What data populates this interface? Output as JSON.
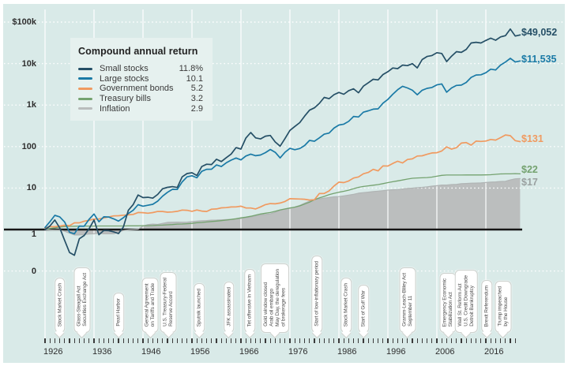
{
  "page": {
    "background": "#ffffff",
    "chart_bg": "#d9eae8",
    "grid_color": "#ffffff",
    "baseline_color": "#161616",
    "axis_text_color": "#2e2e2e",
    "legend_bg": "#e6f1ef",
    "flag_border": "#cdd1cd",
    "flag_text_color": "#4e4e4e",
    "inflation_fill": "#b9bcbc"
  },
  "chart_data": {
    "type": "line",
    "scale": "log",
    "legend_title": "Compound annual return",
    "start_year": 1926,
    "end_year": 2023,
    "y_axis": [
      {
        "label": "$100k",
        "value": 100000
      },
      {
        "label": "10k",
        "value": 10000
      },
      {
        "label": "1k",
        "value": 1000
      },
      {
        "label": "100",
        "value": 100
      },
      {
        "label": "10",
        "value": 10
      },
      {
        "label": "1",
        "value": 1
      },
      {
        "label": "0",
        "value": 0
      }
    ],
    "x_tick_labels": [
      "1926",
      "1936",
      "1946",
      "1956",
      "1966",
      "1976",
      "1986",
      "1996",
      "2006",
      "2016"
    ],
    "series": [
      {
        "name": "Small stocks",
        "return_display": "11.8%",
        "end_label": "$49,052",
        "color": "#254f66",
        "values": [
          1,
          1.22,
          1.7,
          1.1,
          0.55,
          0.28,
          0.24,
          0.6,
          0.72,
          1.05,
          1.7,
          0.75,
          0.95,
          0.94,
          0.88,
          0.8,
          1.15,
          2.9,
          4,
          6.8,
          5.9,
          6,
          5.7,
          7,
          9.6,
          10.4,
          10.8,
          10.3,
          18.6,
          22.4,
          23.4,
          20.1,
          33,
          37.5,
          36.8,
          49.5,
          43.5,
          54,
          66,
          94.5,
          87,
          160,
          218,
          162,
          153,
          178,
          185,
          129,
          102,
          156,
          245,
          306,
          377,
          542,
          753,
          857,
          1095,
          1530,
          1428,
          1785,
          2016,
          1818,
          2232,
          2466,
          1980,
          2862,
          3456,
          4176,
          4032,
          5436,
          6372,
          7812,
          7560,
          9216,
          8928,
          9936,
          7866,
          12510,
          14832,
          15642,
          18306,
          17478,
          11178,
          15102,
          19350,
          18594,
          21960,
          31320,
          32580,
          31320,
          36000,
          41000,
          36500,
          44000,
          47000,
          68000,
          46000,
          49052
        ]
      },
      {
        "name": "Large stocks",
        "return_display": "10.1",
        "end_label": "$11,535",
        "color": "#1a7aa6",
        "values": [
          1.12,
          1.54,
          2.2,
          2.02,
          1.52,
          0.86,
          0.79,
          1.21,
          1.2,
          1.77,
          2.37,
          1.54,
          2.02,
          2.01,
          1.81,
          1.6,
          1.93,
          2.43,
          2.91,
          3.97,
          3.65,
          3.85,
          4.06,
          4.83,
          6.36,
          7.89,
          9.34,
          9.24,
          14.1,
          18.6,
          19.8,
          17.7,
          25.3,
          28.3,
          28.5,
          36.1,
          33,
          40.5,
          47.1,
          53,
          47.7,
          59.1,
          65.6,
          60.1,
          62.5,
          71.4,
          85,
          72.5,
          53.3,
          73.1,
          90.6,
          84.1,
          89.6,
          106,
          141,
          134,
          162,
          199,
          211,
          278,
          330,
          347,
          405,
          533,
          516,
          674,
          725,
          798,
          809,
          1112,
          1368,
          1824,
          2345,
          2838,
          2580,
          2273,
          1771,
          2279,
          2527,
          2651,
          3070,
          3239,
          2041,
          2580,
          2969,
          3032,
          3517,
          4656,
          5293,
          5366,
          6008,
          7320,
          7000,
          9200,
          10890,
          13400,
          10900,
          11535
        ]
      },
      {
        "name": "Government bonds",
        "return_display": "5.2",
        "end_label": "$131",
        "color": "#f09a60",
        "values": [
          1.08,
          1.17,
          1.17,
          1.21,
          1.27,
          1.24,
          1.45,
          1.45,
          1.59,
          1.67,
          1.79,
          1.8,
          1.9,
          2.01,
          2.13,
          2.15,
          2.22,
          2.26,
          2.32,
          2.57,
          2.55,
          2.48,
          2.56,
          2.73,
          2.73,
          2.62,
          2.65,
          2.75,
          2.95,
          2.91,
          2.75,
          2.96,
          2.78,
          2.72,
          3.1,
          3.13,
          3.34,
          3.38,
          3.5,
          3.52,
          3.65,
          3.32,
          3.31,
          3.14,
          3.52,
          3.99,
          4.22,
          4.17,
          4.35,
          4.75,
          5.54,
          5.5,
          5.43,
          5.36,
          5.15,
          5.24,
          7.35,
          7.4,
          8.53,
          11.2,
          13.9,
          13.5,
          14.8,
          17.4,
          18.5,
          22.1,
          23.8,
          28.2,
          26,
          34.2,
          33.9,
          39.2,
          44.3,
          40.3,
          48.7,
          50.5,
          59.1,
          59.9,
          65,
          70.1,
          71,
          78.1,
          98.1,
          86.4,
          94,
          121,
          125,
          108,
          135,
          133,
          136,
          148,
          143,
          164,
          190,
          183,
          139,
          131
        ]
      },
      {
        "name": "Treasury bills",
        "return_display": "3.2",
        "end_label": "$22",
        "color": "#74a26f",
        "values": [
          1.03,
          1.06,
          1.1,
          1.15,
          1.18,
          1.19,
          1.2,
          1.21,
          1.21,
          1.21,
          1.21,
          1.22,
          1.22,
          1.22,
          1.22,
          1.22,
          1.22,
          1.23,
          1.23,
          1.23,
          1.24,
          1.24,
          1.25,
          1.27,
          1.28,
          1.3,
          1.32,
          1.35,
          1.36,
          1.38,
          1.41,
          1.46,
          1.48,
          1.52,
          1.56,
          1.6,
          1.64,
          1.69,
          1.75,
          1.82,
          1.91,
          1.99,
          2.09,
          2.23,
          2.37,
          2.48,
          2.57,
          2.75,
          2.97,
          3.14,
          3.3,
          3.47,
          3.72,
          4.11,
          4.57,
          5.24,
          5.79,
          6.3,
          6.92,
          7.46,
          7.92,
          8.35,
          8.88,
          9.63,
          10.4,
          10.9,
          11.3,
          11.7,
          12.1,
          12.8,
          13.5,
          14.2,
          14.9,
          15.6,
          16.5,
          17.2,
          17.5,
          17.7,
          17.9,
          18.4,
          19.3,
          20.2,
          20.6,
          20.6,
          20.6,
          20.6,
          20.7,
          20.7,
          20.7,
          20.7,
          20.8,
          21,
          21.4,
          21.9,
          22,
          22,
          22.3,
          22
        ]
      },
      {
        "name": "Inflation",
        "return_display": "2.9",
        "end_label": "$17",
        "color": "#b0b4b4",
        "area": true,
        "label_color": "#9aa0a0",
        "values": [
          1,
          0.98,
          0.97,
          0.97,
          0.91,
          0.82,
          0.74,
          0.74,
          0.76,
          0.78,
          0.79,
          0.81,
          0.79,
          0.79,
          0.79,
          0.87,
          0.95,
          0.98,
          1,
          1.02,
          1.21,
          1.32,
          1.35,
          1.33,
          1.41,
          1.49,
          1.5,
          1.51,
          1.5,
          1.51,
          1.55,
          1.6,
          1.63,
          1.65,
          1.68,
          1.69,
          1.71,
          1.74,
          1.76,
          1.79,
          1.85,
          1.91,
          2,
          2.12,
          2.24,
          2.31,
          2.39,
          2.6,
          2.92,
          3.12,
          3.27,
          3.49,
          3.81,
          4.31,
          4.85,
          5.28,
          5.49,
          5.7,
          5.92,
          6.15,
          6.22,
          6.49,
          6.78,
          7.09,
          7.53,
          7.76,
          7.98,
          8.2,
          8.42,
          8.64,
          8.92,
          9.07,
          9.22,
          9.47,
          9.79,
          9.94,
          10.2,
          10.4,
          10.7,
          11.1,
          11.4,
          11.8,
          11.8,
          12.1,
          12.3,
          12.7,
          12.9,
          13.1,
          13.2,
          13.3,
          13.6,
          13.9,
          14.1,
          14.4,
          14.6,
          15.7,
          16.7,
          17
        ]
      }
    ],
    "events": [
      {
        "year": 1929,
        "lines": [
          "Stock Market Crash"
        ]
      },
      {
        "year": 1933.5,
        "lines": [
          "Glass-Steagall Act",
          "Securities Exchange Act"
        ]
      },
      {
        "year": 1941,
        "lines": [
          "Pearl Harbor"
        ]
      },
      {
        "year": 1947.5,
        "lines": [
          "General Agreement",
          "on Tariffs and Trade"
        ]
      },
      {
        "year": 1951.2,
        "lines": [
          "U.S. Treasury-Federal",
          "Reserve Accord"
        ]
      },
      {
        "year": 1957.5,
        "lines": [
          "Sputnik launched"
        ]
      },
      {
        "year": 1963.5,
        "lines": [
          "JFK assassinated"
        ]
      },
      {
        "year": 1967.8,
        "lines": [
          "Tet offensive in Vietnam"
        ]
      },
      {
        "year": 1973,
        "lines": [
          "Gold window closed",
          "Arab oil embargo",
          "May Day, the deregulation",
          "of brokerage fees"
        ]
      },
      {
        "year": 1981.5,
        "lines": [
          "Start of low-inflationary period"
        ]
      },
      {
        "year": 1987.5,
        "lines": [
          "Stock Market Crash"
        ]
      },
      {
        "year": 1991,
        "lines": [
          "Start of Gulf War"
        ]
      },
      {
        "year": 2000,
        "lines": [
          "Gramm-Leach-Bliley Act",
          "September 11"
        ]
      },
      {
        "year": 2008.3,
        "lines": [
          "Emergency Economic",
          "Stabilization Act"
        ]
      },
      {
        "year": 2012,
        "lines": [
          "Wall St. Reform Act",
          "U.S. Credit Downgrade",
          "Detroit Bankruptcy"
        ]
      },
      {
        "year": 2016.2,
        "lines": [
          "Brexit Referendum"
        ]
      },
      {
        "year": 2019.5,
        "lines": [
          "Trump impeached",
          "by the House"
        ]
      }
    ]
  }
}
